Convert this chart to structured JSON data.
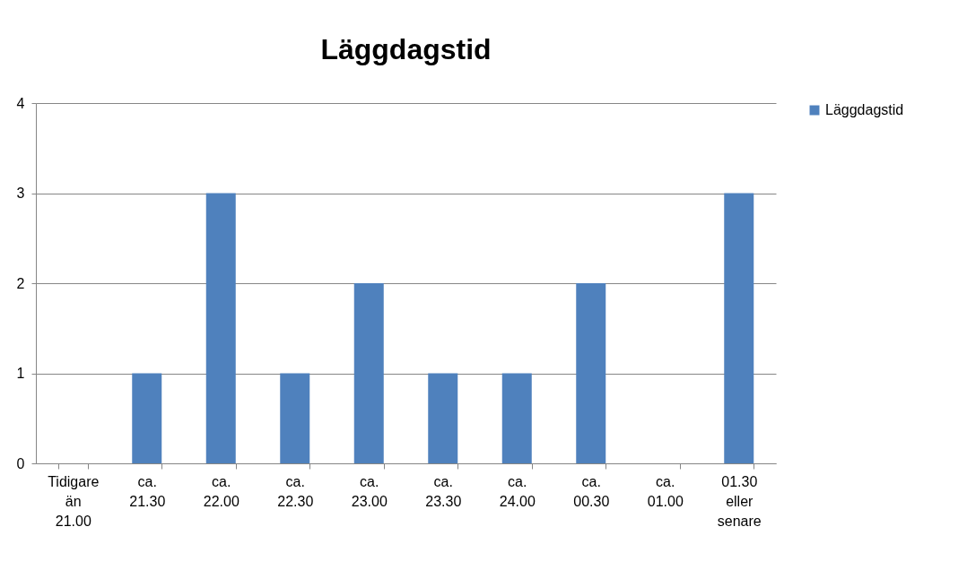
{
  "chart_data": {
    "type": "bar",
    "title": "Läggdagstid",
    "categories": [
      "Tidigare än 21.00",
      "ca. 21.30",
      "ca. 22.00",
      "ca. 22.30",
      "ca. 23.00",
      "ca. 23.30",
      "ca. 24.00",
      "ca. 00.30",
      "ca. 01.00",
      "01.30 eller senare"
    ],
    "series": [
      {
        "name": "Läggdagstid",
        "color": "#4f81bd",
        "values": [
          0,
          1,
          3,
          1,
          2,
          1,
          1,
          2,
          0,
          3
        ]
      }
    ],
    "ylim": [
      0,
      4
    ],
    "yticks": [
      0,
      1,
      2,
      3,
      4
    ],
    "grid": "y",
    "legend": "right"
  }
}
